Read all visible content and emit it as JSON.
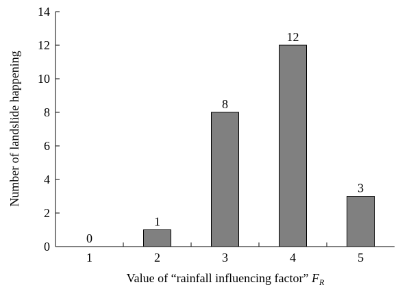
{
  "chart_data": {
    "type": "bar",
    "categories": [
      "1",
      "2",
      "3",
      "4",
      "5"
    ],
    "values": [
      0,
      1,
      8,
      12,
      3
    ],
    "data_labels": [
      "0",
      "1",
      "8",
      "12",
      "3"
    ],
    "xlabel": "Value of “rainfall influencing factor” ",
    "xlabel_symbol": "F",
    "xlabel_subscript": "R",
    "ylabel": "Number of landslide happening",
    "ylim": [
      0,
      14
    ],
    "yticks": [
      0,
      2,
      4,
      6,
      8,
      10,
      12,
      14
    ],
    "ytick_labels": [
      "0",
      "2",
      "4",
      "6",
      "8",
      "10",
      "12",
      "14"
    ],
    "grid": false,
    "legend": "none",
    "bar_color": "#808080",
    "bar_edge_color": "#000000"
  }
}
